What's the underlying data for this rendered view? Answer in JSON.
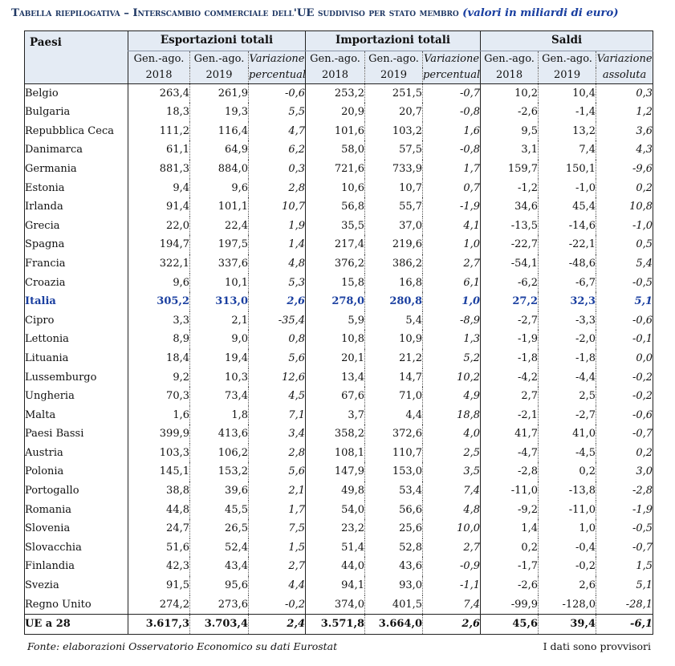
{
  "title": {
    "main": "Tabella riepilogativa – Interscambio commerciale dell'UE suddiviso per stato membro",
    "unit": "(valori in miliardi di euro)"
  },
  "header": {
    "paesi": "Paesi",
    "groups": [
      "Esportazioni totali",
      "Importazioni totali",
      "Saldi"
    ],
    "sub_line1": [
      "Gen.-ago.",
      "Gen.-ago.",
      "Variazione",
      "Gen.-ago.",
      "Gen.-ago.",
      "Variazione",
      "Gen.-ago.",
      "Gen.-ago.",
      "Variazione"
    ],
    "sub_line2": [
      "2018",
      "2019",
      "percentuale",
      "2018",
      "2019",
      "percentuale",
      "2018",
      "2019",
      "assoluta"
    ]
  },
  "rows": [
    {
      "name": "Belgio",
      "v": [
        "263,4",
        "261,9",
        "-0,6",
        "253,2",
        "251,5",
        "-0,7",
        "10,2",
        "10,4",
        "0,3"
      ]
    },
    {
      "name": "Bulgaria",
      "v": [
        "18,3",
        "19,3",
        "5,5",
        "20,9",
        "20,7",
        "-0,8",
        "-2,6",
        "-1,4",
        "1,2"
      ]
    },
    {
      "name": "Repubblica Ceca",
      "v": [
        "111,2",
        "116,4",
        "4,7",
        "101,6",
        "103,2",
        "1,6",
        "9,5",
        "13,2",
        "3,6"
      ]
    },
    {
      "name": "Danimarca",
      "v": [
        "61,1",
        "64,9",
        "6,2",
        "58,0",
        "57,5",
        "-0,8",
        "3,1",
        "7,4",
        "4,3"
      ]
    },
    {
      "name": "Germania",
      "v": [
        "881,3",
        "884,0",
        "0,3",
        "721,6",
        "733,9",
        "1,7",
        "159,7",
        "150,1",
        "-9,6"
      ]
    },
    {
      "name": "Estonia",
      "v": [
        "9,4",
        "9,6",
        "2,8",
        "10,6",
        "10,7",
        "0,7",
        "-1,2",
        "-1,0",
        "0,2"
      ]
    },
    {
      "name": "Irlanda",
      "v": [
        "91,4",
        "101,1",
        "10,7",
        "56,8",
        "55,7",
        "-1,9",
        "34,6",
        "45,4",
        "10,8"
      ]
    },
    {
      "name": "Grecia",
      "v": [
        "22,0",
        "22,4",
        "1,9",
        "35,5",
        "37,0",
        "4,1",
        "-13,5",
        "-14,6",
        "-1,0"
      ]
    },
    {
      "name": "Spagna",
      "v": [
        "194,7",
        "197,5",
        "1,4",
        "217,4",
        "219,6",
        "1,0",
        "-22,7",
        "-22,1",
        "0,5"
      ]
    },
    {
      "name": "Francia",
      "v": [
        "322,1",
        "337,6",
        "4,8",
        "376,2",
        "386,2",
        "2,7",
        "-54,1",
        "-48,6",
        "5,4"
      ]
    },
    {
      "name": "Croazia",
      "v": [
        "9,6",
        "10,1",
        "5,3",
        "15,8",
        "16,8",
        "6,1",
        "-6,2",
        "-6,7",
        "-0,5"
      ]
    },
    {
      "name": "Italia",
      "v": [
        "305,2",
        "313,0",
        "2,6",
        "278,0",
        "280,8",
        "1,0",
        "27,2",
        "32,3",
        "5,1"
      ],
      "highlight": true
    },
    {
      "name": "Cipro",
      "v": [
        "3,3",
        "2,1",
        "-35,4",
        "5,9",
        "5,4",
        "-8,9",
        "-2,7",
        "-3,3",
        "-0,6"
      ]
    },
    {
      "name": "Lettonia",
      "v": [
        "8,9",
        "9,0",
        "0,8",
        "10,8",
        "10,9",
        "1,3",
        "-1,9",
        "-2,0",
        "-0,1"
      ]
    },
    {
      "name": "Lituania",
      "v": [
        "18,4",
        "19,4",
        "5,6",
        "20,1",
        "21,2",
        "5,2",
        "-1,8",
        "-1,8",
        "0,0"
      ]
    },
    {
      "name": "Lussemburgo",
      "v": [
        "9,2",
        "10,3",
        "12,6",
        "13,4",
        "14,7",
        "10,2",
        "-4,2",
        "-4,4",
        "-0,2"
      ]
    },
    {
      "name": "Ungheria",
      "v": [
        "70,3",
        "73,4",
        "4,5",
        "67,6",
        "71,0",
        "4,9",
        "2,7",
        "2,5",
        "-0,2"
      ]
    },
    {
      "name": "Malta",
      "v": [
        "1,6",
        "1,8",
        "7,1",
        "3,7",
        "4,4",
        "18,8",
        "-2,1",
        "-2,7",
        "-0,6"
      ]
    },
    {
      "name": "Paesi Bassi",
      "v": [
        "399,9",
        "413,6",
        "3,4",
        "358,2",
        "372,6",
        "4,0",
        "41,7",
        "41,0",
        "-0,7"
      ]
    },
    {
      "name": "Austria",
      "v": [
        "103,3",
        "106,2",
        "2,8",
        "108,1",
        "110,7",
        "2,5",
        "-4,7",
        "-4,5",
        "0,2"
      ]
    },
    {
      "name": "Polonia",
      "v": [
        "145,1",
        "153,2",
        "5,6",
        "147,9",
        "153,0",
        "3,5",
        "-2,8",
        "0,2",
        "3,0"
      ]
    },
    {
      "name": "Portogallo",
      "v": [
        "38,8",
        "39,6",
        "2,1",
        "49,8",
        "53,4",
        "7,4",
        "-11,0",
        "-13,8",
        "-2,8"
      ]
    },
    {
      "name": "Romania",
      "v": [
        "44,8",
        "45,5",
        "1,7",
        "54,0",
        "56,6",
        "4,8",
        "-9,2",
        "-11,0",
        "-1,9"
      ]
    },
    {
      "name": "Slovenia",
      "v": [
        "24,7",
        "26,5",
        "7,5",
        "23,2",
        "25,6",
        "10,0",
        "1,4",
        "1,0",
        "-0,5"
      ]
    },
    {
      "name": "Slovacchia",
      "v": [
        "51,6",
        "52,4",
        "1,5",
        "51,4",
        "52,8",
        "2,7",
        "0,2",
        "-0,4",
        "-0,7"
      ]
    },
    {
      "name": "Finlandia",
      "v": [
        "42,3",
        "43,4",
        "2,7",
        "44,0",
        "43,6",
        "-0,9",
        "-1,7",
        "-0,2",
        "1,5"
      ]
    },
    {
      "name": "Svezia",
      "v": [
        "91,5",
        "95,6",
        "4,4",
        "94,1",
        "93,0",
        "-1,1",
        "-2,6",
        "2,6",
        "5,1"
      ]
    },
    {
      "name": "Regno Unito",
      "v": [
        "274,2",
        "273,6",
        "-0,2",
        "374,0",
        "401,5",
        "7,4",
        "-99,9",
        "-128,0",
        "-28,1"
      ]
    }
  ],
  "total": {
    "name": "UE a 28",
    "v": [
      "3.617,3",
      "3.703,4",
      "2,4",
      "3.571,8",
      "3.664,0",
      "2,6",
      "45,6",
      "39,4",
      "-6,1"
    ]
  },
  "footer": {
    "source": "Fonte: elaborazioni Osservatorio Economico su dati Eurostat",
    "note": "I dati sono provvisori"
  },
  "colors": {
    "title": "#1f3864",
    "highlight": "#1a3fa0",
    "header_bg": "#e4ebf4"
  }
}
